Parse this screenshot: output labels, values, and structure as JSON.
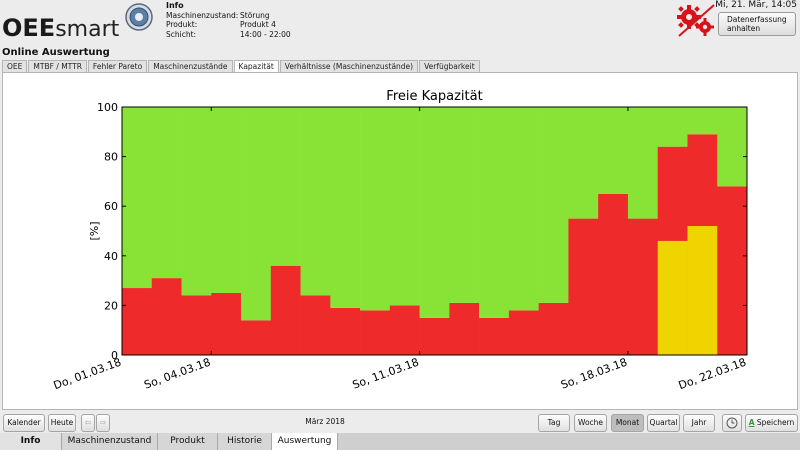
{
  "header": {
    "logo_bold": "OEE",
    "logo_light": "smart",
    "info_title": "Info",
    "info_rows": [
      {
        "key": "Maschinenzustand:",
        "value": "Störung"
      },
      {
        "key": "Produkt:",
        "value": "Produkt 4"
      },
      {
        "key": "Schicht:",
        "value": "14:00 - 22:00"
      }
    ],
    "datetime": "Mi, 21. Mär, 14:05",
    "stop_button_line1": "Datenerfassung",
    "stop_button_line2": "anhalten"
  },
  "section_title": "Online Auswertung",
  "subtabs": [
    {
      "label": "OEE",
      "active": false
    },
    {
      "label": "MTBF / MTTR",
      "active": false
    },
    {
      "label": "Fehler Pareto",
      "active": false
    },
    {
      "label": "Maschinenzustände",
      "active": false
    },
    {
      "label": "Kapazität",
      "active": true
    },
    {
      "label": "Verhältnisse (Maschinenzustände)",
      "active": false
    },
    {
      "label": "Verfügbarkeit",
      "active": false
    }
  ],
  "toolbar": {
    "kalender": "Kalender",
    "heute": "Heute",
    "prev": "⇦",
    "next": "⇨",
    "period": "März 2018",
    "tag": "Tag",
    "woche": "Woche",
    "monat": "Monat",
    "quartal": "Quartal",
    "jahr": "Jahr",
    "speichern": "Speichern",
    "speichern_icon": "A"
  },
  "main_tabs": [
    {
      "label": "Info"
    },
    {
      "label": "Maschinenzustand"
    },
    {
      "label": "Produkt"
    },
    {
      "label": "Historie"
    },
    {
      "label": "Auswertung"
    }
  ],
  "colors": {
    "red": "#ee2a2a",
    "green": "#88e336",
    "yellow": "#f0d400"
  },
  "chart_data": {
    "type": "bar",
    "title": "Freie Kapazität",
    "ylabel": "[%]",
    "ylim": [
      0,
      100
    ],
    "yticks": [
      0,
      20,
      40,
      60,
      80,
      100
    ],
    "xtick_labels": [
      "Do, 01.03.18",
      "So, 04.03.18",
      "So, 11.03.18",
      "So, 18.03.18",
      "Do, 22.03.18"
    ],
    "xtick_days": [
      1,
      4,
      11,
      18,
      22
    ],
    "x_range_days": [
      1,
      22
    ],
    "days": [
      1,
      2,
      3,
      4,
      5,
      6,
      7,
      8,
      9,
      10,
      11,
      12,
      13,
      14,
      15,
      16,
      17,
      18,
      19,
      20,
      21
    ],
    "series": [
      {
        "values": [
          27,
          31,
          24,
          25,
          14,
          36,
          24,
          19,
          18,
          20,
          15,
          21,
          15,
          18,
          21,
          55,
          65,
          55,
          84,
          89,
          68
        ]
      },
      {
        "values": [
          0,
          0,
          0,
          0,
          0,
          0,
          0,
          0,
          0,
          0,
          0,
          0,
          0,
          0,
          0,
          0,
          0,
          0,
          46,
          52,
          0
        ]
      },
      {
        "values": [
          73,
          69,
          76,
          75,
          86,
          64,
          76,
          81,
          82,
          80,
          85,
          79,
          85,
          82,
          79,
          45,
          35,
          45,
          16,
          11,
          32
        ]
      }
    ]
  }
}
